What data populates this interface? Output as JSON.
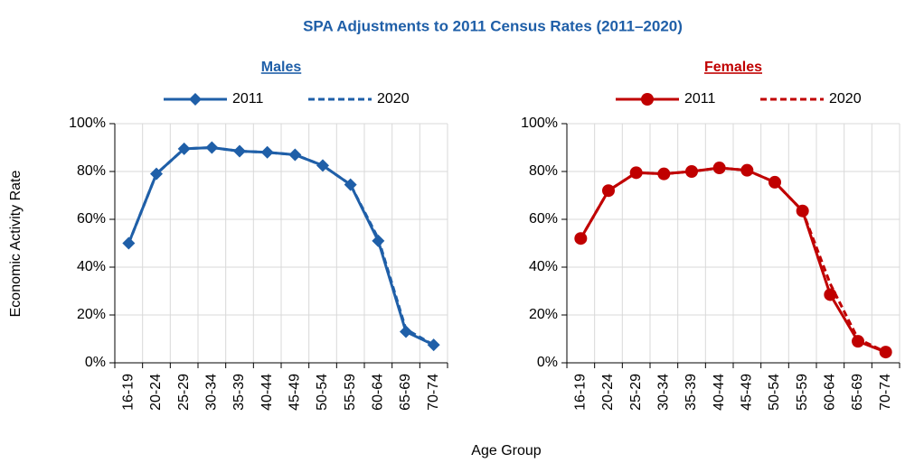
{
  "title": "SPA Adjustments to 2011 Census Rates (2011–2020)",
  "y_label": "Economic Activity Rate",
  "x_label": "Age Group",
  "chart_data": [
    {
      "type": "line",
      "subtitle": "Males",
      "categories": [
        "16-19",
        "20-24",
        "25-29",
        "30-34",
        "35-39",
        "40-44",
        "45-49",
        "50-54",
        "55-59",
        "60-64",
        "65-69",
        "70-74"
      ],
      "series": [
        {
          "name": "2011",
          "color": "#1f5fa8",
          "marker": "diamond",
          "dashed": false,
          "values": [
            50,
            79,
            89.5,
            90,
            88.5,
            88,
            87,
            82.5,
            74.5,
            51,
            13,
            7.5
          ]
        },
        {
          "name": "2020",
          "color": "#1f5fa8",
          "marker": "none",
          "dashed": true,
          "values": [
            50,
            79,
            89.5,
            90,
            88.5,
            88,
            87,
            82.5,
            74.5,
            52,
            14,
            7.5
          ]
        }
      ],
      "ylim": [
        0,
        100
      ],
      "yticks": [
        {
          "value": 0,
          "label": "0%"
        },
        {
          "value": 20,
          "label": "20%"
        },
        {
          "value": 40,
          "label": "40%"
        },
        {
          "value": 60,
          "label": "60%"
        },
        {
          "value": 80,
          "label": "80%"
        },
        {
          "value": 100,
          "label": "100%"
        }
      ],
      "grid": true
    },
    {
      "type": "line",
      "subtitle": "Females",
      "categories": [
        "16-19",
        "20-24",
        "25-29",
        "30-34",
        "35-39",
        "40-44",
        "45-49",
        "50-54",
        "55-59",
        "60-64",
        "65-69",
        "70-74"
      ],
      "series": [
        {
          "name": "2011",
          "color": "#c00000",
          "marker": "circle",
          "dashed": false,
          "values": [
            52,
            72,
            79.5,
            79,
            80,
            81.5,
            80.5,
            75.5,
            63.5,
            28.5,
            9,
            4.5
          ]
        },
        {
          "name": "2020",
          "color": "#c00000",
          "marker": "none",
          "dashed": true,
          "values": [
            52,
            72,
            79.5,
            79,
            80,
            81.5,
            80.5,
            75.5,
            63.5,
            33,
            10,
            4.5
          ]
        }
      ],
      "ylim": [
        0,
        100
      ],
      "yticks": [
        {
          "value": 0,
          "label": "0%"
        },
        {
          "value": 20,
          "label": "20%"
        },
        {
          "value": 40,
          "label": "40%"
        },
        {
          "value": 60,
          "label": "60%"
        },
        {
          "value": 80,
          "label": "80%"
        },
        {
          "value": 100,
          "label": "100%"
        }
      ],
      "grid": true
    }
  ]
}
